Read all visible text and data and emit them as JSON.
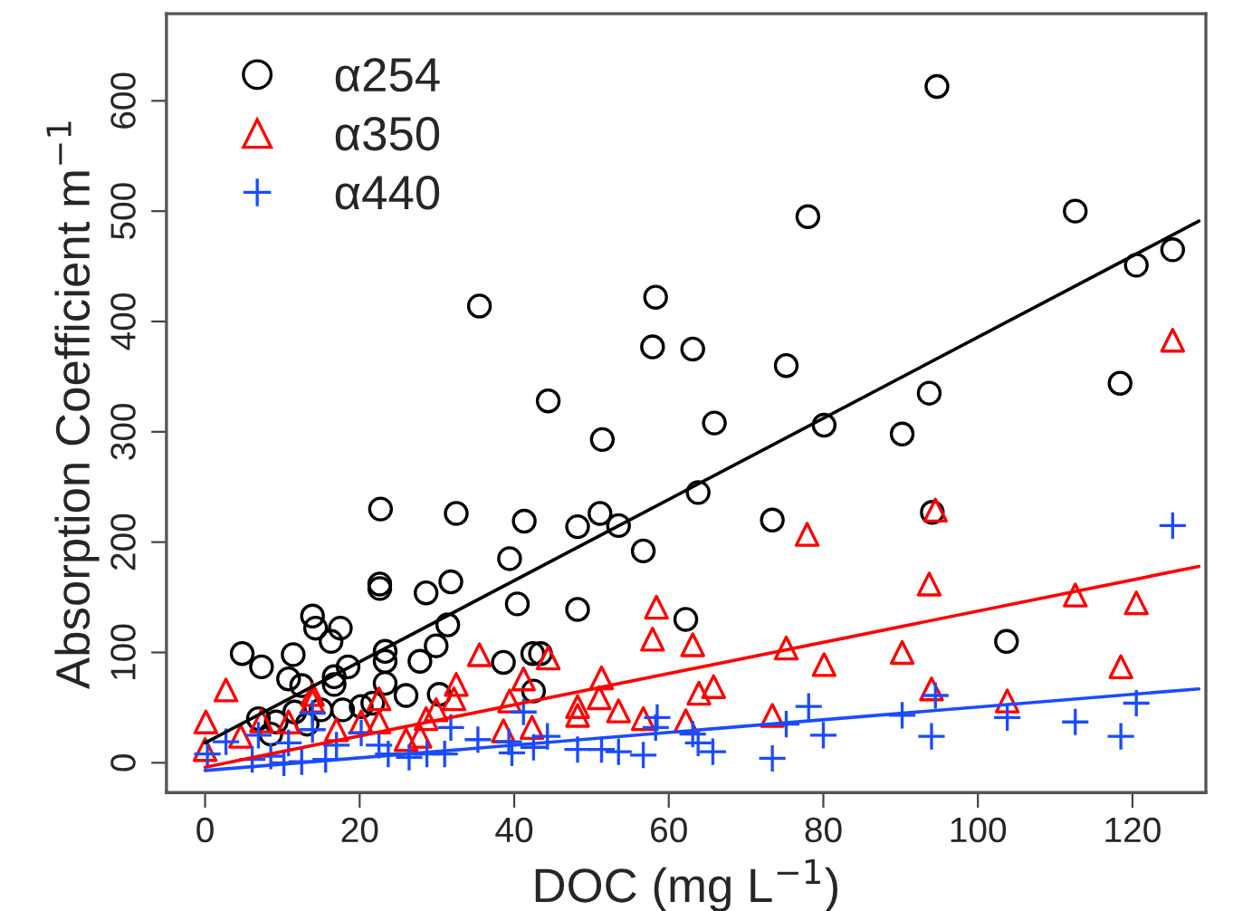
{
  "chart_data": {
    "type": "scatter",
    "xlabel": "DOC (mg L$^{−1}$)",
    "ylabel": "Absorption Coefficient m$^{−1}$",
    "xlim": [
      -5,
      129.5
    ],
    "ylim": [
      -27,
      679
    ],
    "xticks": [
      0,
      20,
      40,
      60,
      80,
      100,
      120
    ],
    "yticks": [
      0,
      100,
      200,
      300,
      400,
      500,
      600
    ],
    "grid": false,
    "legend": "top left",
    "series": [
      {
        "name": "α254",
        "marker": "circle",
        "color": "#000000",
        "x": [
          94.7,
          125.2,
          120.5,
          112.6,
          118.4,
          103.7,
          93.7,
          90.2,
          80.1,
          78.0,
          75.2,
          73.4,
          94.1,
          63.1,
          65.9,
          63.8,
          62.2,
          35.5,
          58.3,
          57.9,
          44.4,
          51.4,
          22.7,
          32.5,
          41.3,
          48.2,
          51.1,
          53.5,
          56.7,
          39.4,
          22.6,
          22.6,
          28.6,
          31.8,
          40.4,
          48.2,
          31.4,
          13.9,
          14.3,
          17.5,
          16.3,
          4.8,
          7.3,
          11.4,
          18.5,
          23.3,
          23.3,
          29.9,
          27.8,
          38.6,
          42.4,
          43.4,
          42.5,
          23.3,
          26.0,
          30.3,
          10.8,
          12.5,
          16.7,
          16.7,
          21.7,
          20.2,
          17.8,
          6.9,
          9.2,
          11.6,
          15.0,
          8.5,
          13.2
        ],
        "values": [
          613,
          465,
          451,
          500,
          344,
          110,
          335,
          298,
          306,
          495,
          360,
          220,
          227,
          375,
          308,
          245,
          130,
          414,
          422,
          377,
          328,
          293,
          230,
          226,
          219,
          214,
          226,
          215,
          192,
          185,
          162,
          158,
          154,
          164,
          144,
          139,
          125,
          133,
          122,
          122,
          110,
          99,
          87,
          98,
          87,
          101,
          92,
          106,
          92,
          91,
          99,
          99,
          65,
          72,
          61,
          62,
          76,
          70,
          78,
          71,
          54,
          51,
          48,
          40,
          37,
          46,
          48,
          26,
          35
        ]
      },
      {
        "name": "α350",
        "marker": "triangle",
        "color": "#ff0000",
        "x": [
          125.2,
          94.5,
          77.9,
          93.7,
          112.6,
          120.5,
          63.1,
          75.2,
          80.1,
          90.2,
          118.5,
          63.9,
          65.8,
          94.0,
          73.4,
          103.8,
          62.2,
          58.4,
          57.9,
          35.5,
          44.4,
          51.3,
          51.0,
          41.2,
          48.2,
          48.2,
          53.5,
          56.7,
          38.6,
          39.4,
          42.3,
          32.5,
          32.2,
          29.9,
          28.6,
          22.5,
          22.5,
          2.7,
          0.1,
          0.0,
          4.6,
          7.3,
          10.8,
          13.9,
          13.9,
          17.0,
          20.2,
          26.0,
          27.8
        ],
        "values": [
          383,
          229,
          207,
          162,
          152,
          145,
          107,
          104,
          89,
          100,
          87,
          63,
          69,
          67,
          43,
          56,
          38,
          141,
          112,
          98,
          95,
          77,
          59,
          76,
          51,
          43,
          47,
          40,
          29,
          56,
          32,
          71,
          58,
          48,
          40,
          58,
          37,
          66,
          37,
          12,
          24,
          38,
          37,
          62,
          56,
          30,
          37,
          21,
          24
        ]
      },
      {
        "name": "α440",
        "marker": "cross",
        "color": "#1a4cff",
        "x": [
          125.2,
          94.5,
          78.1,
          90.2,
          103.8,
          120.5,
          112.6,
          118.5,
          94.0,
          80.0,
          75.2,
          73.4,
          65.7,
          63.1,
          63.8,
          58.5,
          58.3,
          56.7,
          53.5,
          51.3,
          48.2,
          44.3,
          41.2,
          42.5,
          39.3,
          39.7,
          35.3,
          31.8,
          31.0,
          28.7,
          26.4,
          23.7,
          22.5,
          20.2,
          17.0,
          13.9,
          13.9,
          10.8,
          8.5,
          6.1,
          2.7,
          0.3,
          12.5,
          15.6,
          10.2,
          6.9
        ],
        "values": [
          215,
          61,
          51,
          43,
          41,
          54,
          37,
          24,
          24,
          25,
          35,
          4,
          10,
          26,
          18,
          41,
          32,
          7,
          10,
          12,
          12,
          24,
          46,
          14,
          19,
          9,
          21,
          32,
          8,
          8,
          5,
          8,
          16,
          27,
          16,
          45,
          30,
          18,
          6,
          3,
          19,
          8,
          1,
          3,
          0,
          25
        ]
      },
      {
        "type": "line",
        "marker": "none",
        "color": "#000000",
        "x": [
          0,
          128.6
        ],
        "values": [
          18,
          491
        ]
      },
      {
        "type": "line",
        "marker": "none",
        "color": "#ff0000",
        "x": [
          0,
          128.6
        ],
        "values": [
          -4,
          178
        ]
      },
      {
        "type": "line",
        "marker": "none",
        "color": "#1a4cff",
        "x": [
          0,
          128.6
        ],
        "values": [
          -7,
          67
        ]
      }
    ]
  }
}
